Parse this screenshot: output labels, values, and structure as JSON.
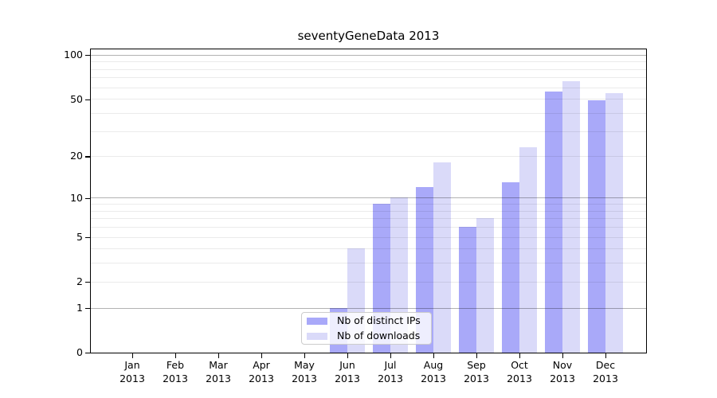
{
  "chart_data": {
    "type": "bar",
    "title": "seventyGeneData 2013",
    "year_label": "2013",
    "categories": [
      "Jan",
      "Feb",
      "Mar",
      "Apr",
      "May",
      "Jun",
      "Jul",
      "Aug",
      "Sep",
      "Oct",
      "Nov",
      "Dec"
    ],
    "series": [
      {
        "name": "Nb of distinct IPs",
        "key": "distinct-ips",
        "color": "#a9a9f9",
        "values": [
          0,
          0,
          0,
          0,
          0,
          1,
          9,
          12,
          6,
          13,
          56,
          49
        ]
      },
      {
        "name": "Nb of downloads",
        "key": "downloads",
        "color": "#dadaf9",
        "values": [
          0,
          0,
          0,
          0,
          0,
          4,
          10,
          18,
          7,
          23,
          66,
          55
        ]
      }
    ],
    "y_axis": {
      "scale": "log1p",
      "ylim": [
        0,
        110
      ],
      "tick_values": [
        0,
        1,
        2,
        5,
        10,
        20,
        50,
        100
      ],
      "gridlines_major": [
        1,
        10,
        100
      ],
      "gridlines_minor": [
        2,
        3,
        4,
        5,
        6,
        7,
        8,
        9,
        20,
        30,
        40,
        50,
        60,
        70,
        80,
        90
      ]
    },
    "legend_position": "bottom-center",
    "grid": true
  }
}
